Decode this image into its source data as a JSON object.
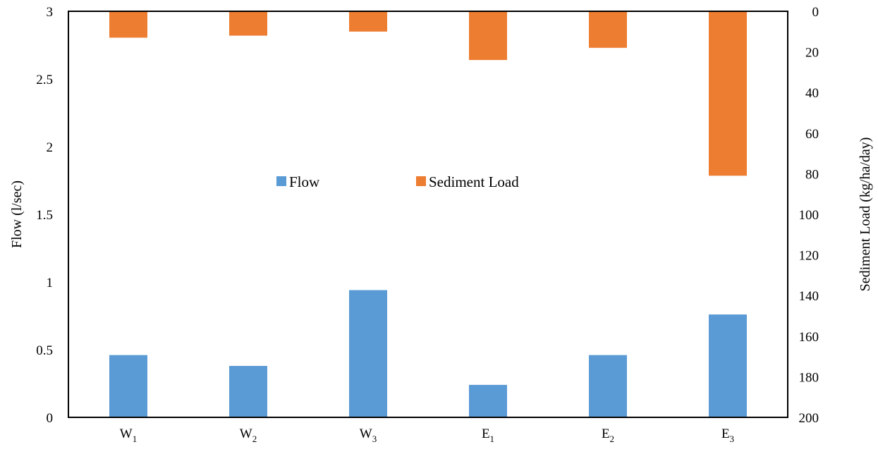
{
  "chart_data": {
    "type": "bar",
    "categories": [
      {
        "base": "W",
        "sub": "1"
      },
      {
        "base": "W",
        "sub": "2"
      },
      {
        "base": "W",
        "sub": "3"
      },
      {
        "base": "E",
        "sub": "1"
      },
      {
        "base": "E",
        "sub": "2"
      },
      {
        "base": "E",
        "sub": "3"
      }
    ],
    "series": [
      {
        "name": "Flow",
        "axis": "left",
        "color": "#5B9BD5",
        "values": [
          0.46,
          0.38,
          0.94,
          0.24,
          0.46,
          0.76
        ]
      },
      {
        "name": "Sediment Load",
        "axis": "right",
        "reversed": true,
        "color": "#ED7D31",
        "values": [
          13,
          12,
          10,
          24,
          18,
          81
        ]
      }
    ],
    "ylabel": "Flow (l/sec)",
    "y2label": "Sediment Load (kg/ha/day)",
    "ylim": [
      0,
      3
    ],
    "y2lim": [
      0,
      200
    ],
    "yticks": [
      "0",
      "0.5",
      "1",
      "1.5",
      "2",
      "2.5",
      "3"
    ],
    "y2ticks": [
      "0",
      "20",
      "40",
      "60",
      "80",
      "100",
      "120",
      "140",
      "160",
      "180",
      "200"
    ],
    "legend": "center",
    "grid": false
  }
}
